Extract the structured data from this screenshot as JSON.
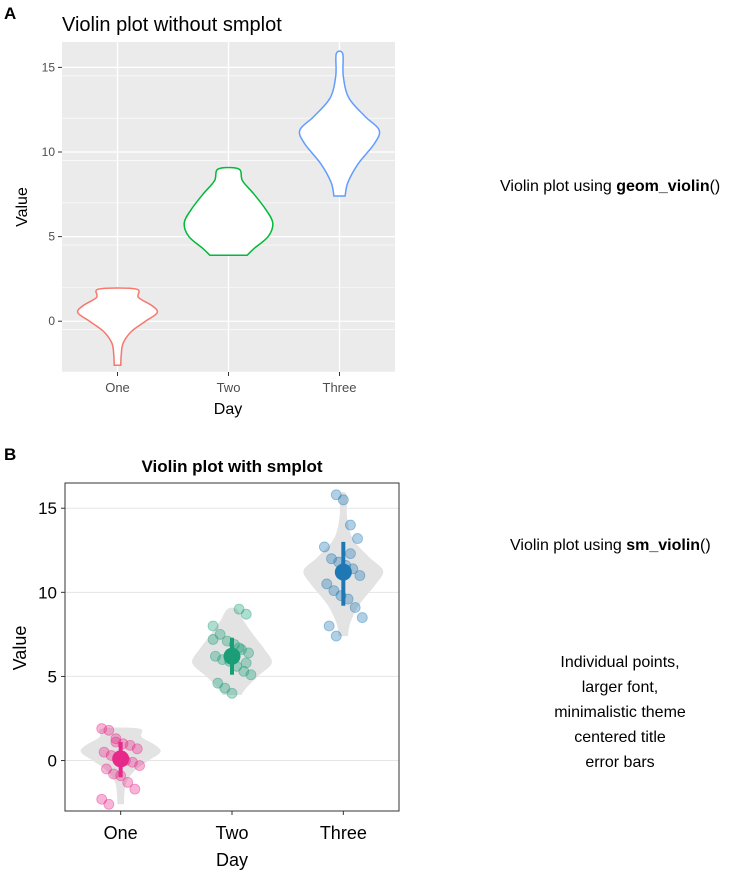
{
  "chart_data": [
    {
      "panel": "A",
      "type": "violin",
      "title": "Violin plot without smplot",
      "xlabel": "Day",
      "ylabel": "Value",
      "categories": [
        "One",
        "Two",
        "Three"
      ],
      "yticks": [
        0,
        5,
        10,
        15
      ],
      "ylim": [
        -3,
        16.5
      ],
      "theme": "grey-background",
      "colors": [
        "#F8766D",
        "#00BA38",
        "#619CFF"
      ],
      "violins": [
        {
          "category": "One",
          "min": -2.6,
          "max": 1.9,
          "mode": 0.5,
          "widths": [
            [
              -2.6,
              0.07
            ],
            [
              -2.0,
              0.08
            ],
            [
              -1.3,
              0.12
            ],
            [
              -0.6,
              0.3
            ],
            [
              0.0,
              0.6
            ],
            [
              0.5,
              0.85
            ],
            [
              0.9,
              0.75
            ],
            [
              1.4,
              0.45
            ],
            [
              1.9,
              0.4
            ]
          ]
        },
        {
          "category": "Two",
          "min": 3.9,
          "max": 9.0,
          "mode": 6.0,
          "widths": [
            [
              3.9,
              0.4
            ],
            [
              4.3,
              0.55
            ],
            [
              5.0,
              0.85
            ],
            [
              5.8,
              0.95
            ],
            [
              6.6,
              0.8
            ],
            [
              7.5,
              0.55
            ],
            [
              8.3,
              0.3
            ],
            [
              9.0,
              0.22
            ]
          ]
        },
        {
          "category": "Three",
          "min": 7.4,
          "max": 15.8,
          "mode": 11.3,
          "widths": [
            [
              7.4,
              0.12
            ],
            [
              8.2,
              0.18
            ],
            [
              9.3,
              0.4
            ],
            [
              10.5,
              0.75
            ],
            [
              11.3,
              0.85
            ],
            [
              12.1,
              0.55
            ],
            [
              13.2,
              0.2
            ],
            [
              14.5,
              0.08
            ],
            [
              15.8,
              0.07
            ]
          ]
        }
      ]
    },
    {
      "panel": "B",
      "type": "violin-with-points",
      "title": "Violin plot with smplot",
      "xlabel": "Day",
      "ylabel": "Value",
      "categories": [
        "One",
        "Two",
        "Three"
      ],
      "yticks": [
        0,
        5,
        10,
        15
      ],
      "ylim": [
        -3,
        16.5
      ],
      "theme": "minimal",
      "colors": [
        "#E7298A",
        "#1B9E77",
        "#1F78B4"
      ],
      "summary": [
        {
          "category": "One",
          "mean": 0.1,
          "lower": -1.0,
          "upper": 1.1
        },
        {
          "category": "Two",
          "mean": 6.2,
          "lower": 5.1,
          "upper": 7.3
        },
        {
          "category": "Three",
          "mean": 11.2,
          "lower": 9.2,
          "upper": 13.0
        }
      ],
      "points": [
        [
          1.9,
          1.8,
          1.3,
          1.0,
          0.9,
          0.7,
          0.5,
          0.3,
          0.2,
          0.0,
          -0.1,
          -0.3,
          -0.5,
          -0.8,
          -0.9,
          -1.3,
          -1.7,
          -2.3,
          -2.6,
          1.1
        ],
        [
          9.0,
          8.7,
          8.0,
          7.5,
          7.1,
          6.9,
          6.6,
          6.4,
          6.2,
          6.0,
          5.9,
          5.6,
          5.3,
          5.1,
          4.6,
          4.3,
          4.0,
          6.7,
          5.8,
          7.2
        ],
        [
          15.8,
          15.5,
          14.0,
          13.2,
          12.7,
          12.0,
          11.8,
          11.6,
          11.4,
          11.0,
          10.5,
          10.1,
          9.8,
          9.6,
          9.1,
          8.5,
          8.0,
          7.4,
          11.2,
          12.3
        ]
      ],
      "violins": [
        {
          "category": "One",
          "min": -2.6,
          "max": 1.9,
          "widths": [
            [
              -2.6,
              0.07
            ],
            [
              -2.0,
              0.08
            ],
            [
              -1.3,
              0.12
            ],
            [
              -0.6,
              0.3
            ],
            [
              0.0,
              0.6
            ],
            [
              0.5,
              0.85
            ],
            [
              0.9,
              0.75
            ],
            [
              1.4,
              0.45
            ],
            [
              1.9,
              0.4
            ]
          ]
        },
        {
          "category": "Two",
          "min": 3.9,
          "max": 9.0,
          "widths": [
            [
              3.9,
              0.2
            ],
            [
              4.3,
              0.3
            ],
            [
              5.0,
              0.55
            ],
            [
              5.8,
              0.85
            ],
            [
              6.6,
              0.7
            ],
            [
              7.5,
              0.45
            ],
            [
              8.3,
              0.25
            ],
            [
              9.0,
              0.1
            ]
          ]
        },
        {
          "category": "Three",
          "min": 7.4,
          "max": 15.8,
          "widths": [
            [
              7.4,
              0.1
            ],
            [
              8.2,
              0.15
            ],
            [
              9.3,
              0.35
            ],
            [
              10.5,
              0.7
            ],
            [
              11.3,
              0.85
            ],
            [
              12.1,
              0.55
            ],
            [
              13.2,
              0.2
            ],
            [
              14.5,
              0.08
            ],
            [
              15.8,
              0.07
            ]
          ]
        }
      ]
    }
  ],
  "panel_labels": {
    "a": "A",
    "b": "B"
  },
  "annotations": {
    "a_prefix": "Violin plot using ",
    "a_func": "geom_violin",
    "a_parens": "()",
    "b_prefix": "Violin plot using ",
    "b_func": "sm_violin",
    "b_parens": "()",
    "notes": [
      "Individual points,",
      "larger font,",
      "minimalistic theme",
      "centered title",
      "error bars"
    ]
  }
}
